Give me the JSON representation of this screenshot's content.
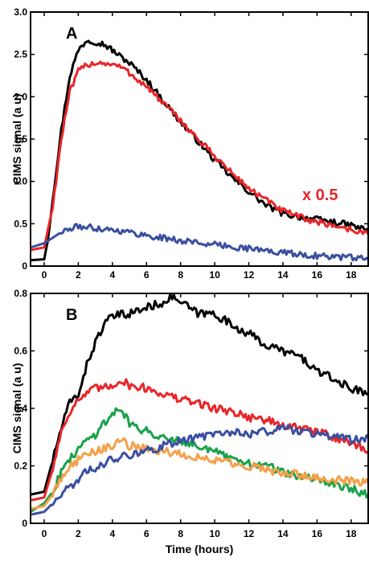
{
  "chart_data": [
    {
      "type": "line",
      "panel_label": "A",
      "ylabel": "CIMS signal (a u)",
      "xlabel": "",
      "xlim": [
        -0.8,
        19
      ],
      "ylim": [
        0,
        3.0
      ],
      "xticks": [
        "0",
        "2",
        "4",
        "6",
        "8",
        "10",
        "12",
        "14",
        "16",
        "18"
      ],
      "yticks": [
        "0",
        "0.5",
        "1.0",
        "1.5",
        "2.0",
        "2.5",
        "3.0"
      ],
      "annotation": {
        "text": "x 0.5",
        "color": "#e8262a"
      },
      "series": [
        {
          "color": "#000000",
          "x": [
            -0.8,
            0,
            0.2,
            0.5,
            1,
            1.5,
            2,
            2.5,
            3,
            3.5,
            4,
            4.5,
            5,
            5.5,
            6,
            7,
            8,
            9,
            10,
            11,
            12,
            13,
            14,
            15,
            16,
            17,
            18,
            19
          ],
          "y": [
            0.07,
            0.08,
            0.3,
            0.8,
            1.6,
            2.25,
            2.55,
            2.67,
            2.65,
            2.62,
            2.55,
            2.47,
            2.4,
            2.3,
            2.2,
            1.95,
            1.7,
            1.48,
            1.25,
            1.05,
            0.88,
            0.72,
            0.62,
            0.58,
            0.55,
            0.52,
            0.48,
            0.42
          ]
        },
        {
          "color": "#e8262a",
          "x": [
            -0.8,
            0,
            0.5,
            1,
            1.5,
            2,
            2.5,
            3,
            3.5,
            4,
            4.5,
            5,
            5.5,
            6,
            7,
            8,
            9,
            10,
            11,
            12,
            13,
            14,
            15,
            16,
            17,
            18,
            19
          ],
          "y": [
            0.19,
            0.22,
            0.7,
            1.5,
            2.05,
            2.3,
            2.38,
            2.4,
            2.4,
            2.38,
            2.35,
            2.28,
            2.2,
            2.12,
            1.92,
            1.72,
            1.5,
            1.3,
            1.1,
            0.92,
            0.78,
            0.65,
            0.58,
            0.52,
            0.48,
            0.43,
            0.38
          ]
        },
        {
          "color": "#3a4fa0",
          "x": [
            -0.8,
            0,
            1,
            2,
            3,
            4,
            5,
            6,
            7,
            8,
            9,
            10,
            11,
            12,
            13,
            14,
            15,
            16,
            17,
            18,
            19
          ],
          "y": [
            0.22,
            0.27,
            0.4,
            0.47,
            0.45,
            0.43,
            0.4,
            0.36,
            0.33,
            0.3,
            0.28,
            0.25,
            0.23,
            0.21,
            0.18,
            0.16,
            0.14,
            0.12,
            0.11,
            0.1,
            0.08
          ]
        }
      ]
    },
    {
      "type": "line",
      "panel_label": "B",
      "ylabel": "CIMS signal (a u)",
      "xlabel": "Time (hours)",
      "xlim": [
        -0.8,
        19
      ],
      "ylim": [
        0,
        0.8
      ],
      "xticks": [
        "0",
        "2",
        "4",
        "6",
        "8",
        "10",
        "12",
        "14",
        "16",
        "18"
      ],
      "yticks": [
        "0",
        "0.2",
        "0.4",
        "0.6",
        "0.8"
      ],
      "series": [
        {
          "color": "#000000",
          "x": [
            -0.8,
            0,
            0.5,
            1,
            1.5,
            2,
            2.5,
            3,
            3.5,
            4,
            5,
            6,
            7,
            7.5,
            8,
            9,
            10,
            11,
            12,
            13,
            14,
            15,
            16,
            17,
            18,
            19
          ],
          "y": [
            0.1,
            0.11,
            0.22,
            0.33,
            0.42,
            0.45,
            0.55,
            0.63,
            0.69,
            0.72,
            0.73,
            0.75,
            0.77,
            0.79,
            0.77,
            0.73,
            0.73,
            0.69,
            0.66,
            0.62,
            0.6,
            0.58,
            0.53,
            0.5,
            0.47,
            0.45
          ]
        },
        {
          "color": "#e8262a",
          "x": [
            -0.8,
            0,
            0.5,
            1,
            1.5,
            2,
            2.5,
            3,
            3.5,
            4,
            4.5,
            5,
            6,
            7,
            8,
            9,
            10,
            11,
            12,
            13,
            14,
            15,
            16,
            17,
            18,
            19
          ],
          "y": [
            0.08,
            0.09,
            0.19,
            0.32,
            0.39,
            0.43,
            0.45,
            0.47,
            0.47,
            0.48,
            0.5,
            0.48,
            0.47,
            0.45,
            0.43,
            0.42,
            0.4,
            0.39,
            0.37,
            0.36,
            0.34,
            0.33,
            0.32,
            0.3,
            0.28,
            0.25
          ]
        },
        {
          "color": "#1aa24a",
          "x": [
            -0.8,
            0,
            0.5,
            1,
            1.5,
            2,
            2.5,
            3,
            3.5,
            4,
            4.5,
            5,
            5.5,
            6,
            7,
            8,
            9,
            10,
            11,
            12,
            13,
            14,
            15,
            16,
            17,
            18,
            19
          ],
          "y": [
            0.04,
            0.07,
            0.11,
            0.18,
            0.22,
            0.26,
            0.29,
            0.31,
            0.35,
            0.38,
            0.4,
            0.35,
            0.33,
            0.32,
            0.3,
            0.29,
            0.27,
            0.25,
            0.22,
            0.21,
            0.2,
            0.18,
            0.16,
            0.15,
            0.14,
            0.12,
            0.1
          ]
        },
        {
          "color": "#f5a04a",
          "x": [
            -0.8,
            0,
            0.5,
            1,
            1.5,
            2,
            2.5,
            3,
            3.5,
            4,
            4.5,
            5,
            6,
            7,
            8,
            9,
            10,
            11,
            12,
            13,
            14,
            15,
            16,
            17,
            18,
            19
          ],
          "y": [
            0.05,
            0.06,
            0.1,
            0.16,
            0.2,
            0.22,
            0.24,
            0.25,
            0.26,
            0.27,
            0.29,
            0.27,
            0.26,
            0.25,
            0.24,
            0.23,
            0.22,
            0.21,
            0.2,
            0.19,
            0.17,
            0.17,
            0.16,
            0.15,
            0.15,
            0.14
          ]
        },
        {
          "color": "#3a4fa0",
          "x": [
            -0.8,
            0,
            0.5,
            1,
            1.5,
            2,
            2.5,
            3,
            3.5,
            4,
            5,
            6,
            7,
            8,
            9,
            10,
            11,
            12,
            13,
            14,
            15,
            16,
            17,
            18,
            19
          ],
          "y": [
            0.03,
            0.04,
            0.07,
            0.1,
            0.13,
            0.15,
            0.18,
            0.19,
            0.21,
            0.22,
            0.24,
            0.25,
            0.27,
            0.29,
            0.3,
            0.31,
            0.32,
            0.31,
            0.32,
            0.33,
            0.32,
            0.31,
            0.3,
            0.29,
            0.3
          ]
        }
      ]
    }
  ]
}
